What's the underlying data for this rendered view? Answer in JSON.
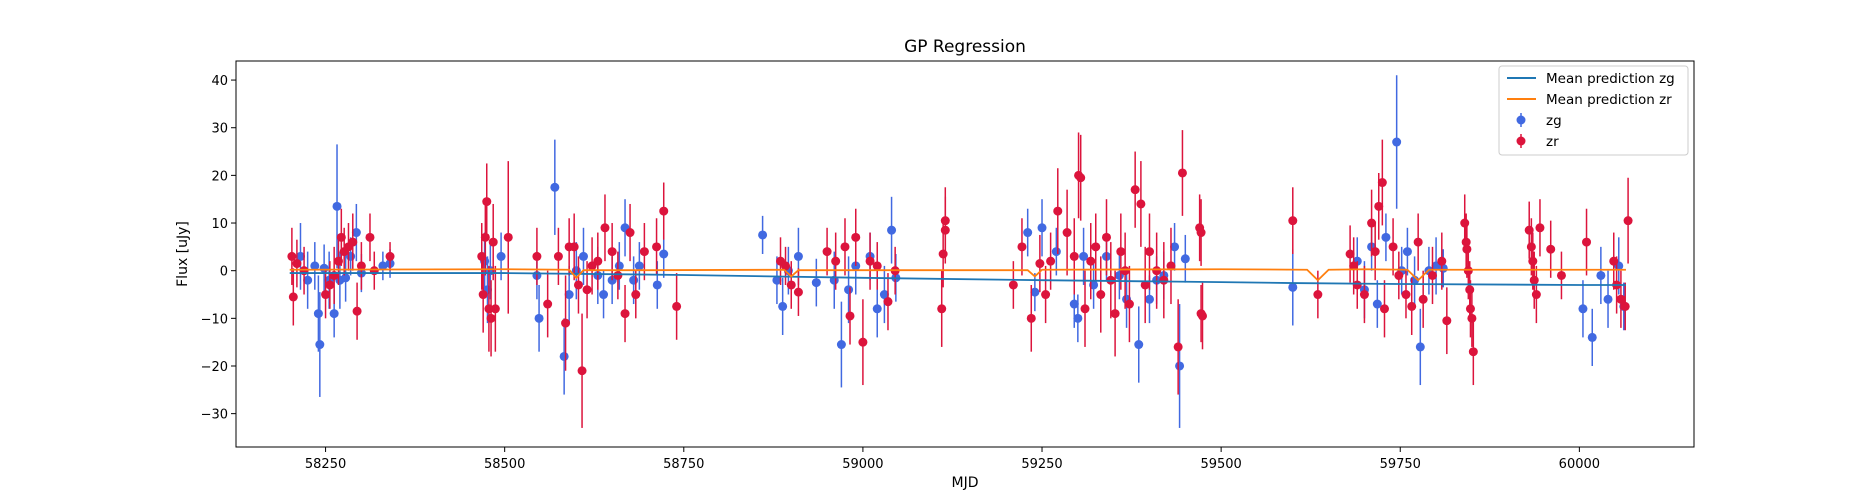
{
  "chart_data": {
    "type": "scatter",
    "title": "GP Regression",
    "xlabel": "MJD",
    "ylabel": "Flux [uJy]",
    "xlim": [
      58125,
      60160
    ],
    "ylim": [
      -37,
      44
    ],
    "xticks": [
      58250,
      58500,
      58750,
      59000,
      59250,
      59500,
      59750,
      60000
    ],
    "yticks": [
      -30,
      -20,
      -10,
      0,
      10,
      20,
      30,
      40
    ],
    "grid": false,
    "legend_position": "top-right",
    "legend": [
      {
        "label": "Mean prediction zg",
        "kind": "line",
        "color": "#1f77b4"
      },
      {
        "label": "Mean prediction zr",
        "kind": "line",
        "color": "#ff7f0e"
      },
      {
        "label": "zg",
        "kind": "errorbar",
        "color": "#4169e1"
      },
      {
        "label": "zr",
        "kind": "errorbar",
        "color": "#dc143c"
      }
    ],
    "series": [
      {
        "name": "Mean prediction zg",
        "kind": "line",
        "color": "#1f77b4",
        "x": [
          58200,
          58500,
          58750,
          59000,
          59250,
          59500,
          59600,
          59750,
          60000,
          60065
        ],
        "y": [
          -0.5,
          -0.5,
          -0.9,
          -1.5,
          -2.0,
          -2.4,
          -2.6,
          -2.8,
          -3.0,
          -3.0
        ]
      },
      {
        "name": "Mean prediction zr",
        "kind": "line",
        "color": "#ff7f0e",
        "x": [
          58200,
          58500,
          58590,
          58600,
          58610,
          58700,
          58890,
          58900,
          58910,
          59000,
          59230,
          59240,
          59250,
          59500,
          59620,
          59635,
          59650,
          59700,
          59760,
          59775,
          59790,
          60000,
          60065
        ],
        "y": [
          0.2,
          0.3,
          0.2,
          -1.5,
          0.1,
          0.1,
          0.2,
          -1.2,
          0.1,
          0.1,
          0.1,
          -1.2,
          0.2,
          0.3,
          0.2,
          -2.0,
          0.2,
          0.3,
          0.2,
          -2.0,
          0.2,
          0.2,
          0.2
        ]
      },
      {
        "name": "zg",
        "kind": "errorbar",
        "color": "#4169e1",
        "points": [
          [
            58215,
            3,
            7
          ],
          [
            58225,
            -2,
            6
          ],
          [
            58235,
            1,
            5
          ],
          [
            58240,
            -9,
            8
          ],
          [
            58242,
            -15.5,
            11
          ],
          [
            58248,
            0.5,
            5
          ],
          [
            58255,
            -2,
            6
          ],
          [
            58262,
            -9,
            5
          ],
          [
            58266,
            13.5,
            13
          ],
          [
            58270,
            -2,
            6
          ],
          [
            58278,
            -1.5,
            5
          ],
          [
            58285,
            3,
            4
          ],
          [
            58293,
            8,
            6
          ],
          [
            58300,
            -0.5,
            4
          ],
          [
            58330,
            1,
            3
          ],
          [
            58340,
            1.5,
            3
          ],
          [
            58472,
            2,
            6
          ],
          [
            58476,
            -4,
            7
          ],
          [
            58480,
            0,
            6
          ],
          [
            58495,
            3,
            5
          ],
          [
            58545,
            -1,
            5
          ],
          [
            58548,
            -10,
            7
          ],
          [
            58570,
            17.5,
            10
          ],
          [
            58583,
            -18,
            8
          ],
          [
            58590,
            -5,
            6
          ],
          [
            58600,
            0,
            6
          ],
          [
            58610,
            3,
            6
          ],
          [
            58630,
            -1,
            6
          ],
          [
            58638,
            -5,
            5
          ],
          [
            58650,
            -2,
            5
          ],
          [
            58660,
            1,
            5
          ],
          [
            58668,
            9,
            6
          ],
          [
            58680,
            -2,
            5
          ],
          [
            58688,
            1,
            5
          ],
          [
            58713,
            -3,
            5
          ],
          [
            58722,
            3.5,
            5
          ],
          [
            58860,
            7.5,
            4
          ],
          [
            58880,
            -2,
            5
          ],
          [
            58888,
            -7.5,
            6
          ],
          [
            58896,
            0,
            5
          ],
          [
            58910,
            3,
            6
          ],
          [
            58935,
            -2.5,
            5
          ],
          [
            58960,
            -2,
            6
          ],
          [
            58970,
            -15.5,
            9
          ],
          [
            58980,
            -4,
            7
          ],
          [
            58990,
            1,
            6
          ],
          [
            59010,
            3,
            5
          ],
          [
            59020,
            -8,
            6
          ],
          [
            59030,
            -5,
            6
          ],
          [
            59040,
            8.5,
            7
          ],
          [
            59046,
            -1.5,
            5
          ],
          [
            59230,
            8,
            5
          ],
          [
            59240,
            -4.5,
            4
          ],
          [
            59250,
            9,
            6
          ],
          [
            59270,
            4,
            5
          ],
          [
            59295,
            -7,
            5
          ],
          [
            59300,
            -10,
            5
          ],
          [
            59308,
            3,
            6
          ],
          [
            59322,
            -3,
            5
          ],
          [
            59340,
            3,
            5
          ],
          [
            59358,
            -1,
            5
          ],
          [
            59368,
            -6,
            6
          ],
          [
            59385,
            -15.5,
            8
          ],
          [
            59400,
            -6,
            5
          ],
          [
            59410,
            -2,
            5
          ],
          [
            59420,
            -1,
            5
          ],
          [
            59435,
            5,
            5
          ],
          [
            59442,
            -20,
            13
          ],
          [
            59450,
            2.5,
            5
          ],
          [
            59600,
            -3.5,
            8
          ],
          [
            59690,
            2,
            5
          ],
          [
            59700,
            -4,
            6
          ],
          [
            59710,
            5,
            5
          ],
          [
            59718,
            -7,
            5
          ],
          [
            59730,
            7,
            5
          ],
          [
            59745,
            27,
            14
          ],
          [
            59752,
            0,
            5
          ],
          [
            59760,
            4,
            5
          ],
          [
            59770,
            -2,
            5
          ],
          [
            59778,
            -16,
            8
          ],
          [
            59790,
            0,
            5
          ],
          [
            59800,
            1,
            6
          ],
          [
            59810,
            0.5,
            4
          ],
          [
            60005,
            -8,
            6
          ],
          [
            60018,
            -14,
            6
          ],
          [
            60030,
            -1,
            6
          ],
          [
            60040,
            -6,
            6
          ],
          [
            60055,
            1,
            6
          ],
          [
            60062,
            -7.5,
            5
          ]
        ]
      },
      {
        "name": "zr",
        "kind": "errorbar",
        "color": "#dc143c",
        "points": [
          [
            58203,
            3,
            6
          ],
          [
            58205,
            -5.5,
            6
          ],
          [
            58210,
            1.5,
            5
          ],
          [
            58220,
            0,
            5
          ],
          [
            58250,
            -5,
            5
          ],
          [
            58256,
            -3,
            5
          ],
          [
            58262,
            -1,
            6
          ],
          [
            58268,
            2,
            5
          ],
          [
            58272,
            7,
            6
          ],
          [
            58276,
            4,
            5
          ],
          [
            58282,
            5,
            5
          ],
          [
            58288,
            6,
            6
          ],
          [
            58294,
            -8.5,
            6
          ],
          [
            58300,
            1,
            5
          ],
          [
            58312,
            7,
            5
          ],
          [
            58318,
            0,
            4
          ],
          [
            58340,
            3,
            3
          ],
          [
            58468,
            3,
            7
          ],
          [
            58470,
            -5,
            8
          ],
          [
            58473,
            7,
            8
          ],
          [
            58475,
            14.5,
            8
          ],
          [
            58478,
            -8,
            9
          ],
          [
            58481,
            -10,
            8
          ],
          [
            58484,
            6,
            8
          ],
          [
            58487,
            -8,
            9
          ],
          [
            58505,
            7,
            16
          ],
          [
            58545,
            3,
            6
          ],
          [
            58560,
            -7,
            7
          ],
          [
            58575,
            3,
            6
          ],
          [
            58585,
            -11,
            10
          ],
          [
            58590,
            5,
            6
          ],
          [
            58597,
            5,
            7
          ],
          [
            58603,
            -3,
            6
          ],
          [
            58608,
            -21,
            12
          ],
          [
            58615,
            -4,
            6
          ],
          [
            58622,
            1,
            6
          ],
          [
            58630,
            2,
            6
          ],
          [
            58640,
            9,
            7
          ],
          [
            58650,
            4,
            6
          ],
          [
            58658,
            -1,
            5
          ],
          [
            58668,
            -9,
            6
          ],
          [
            58675,
            8,
            6
          ],
          [
            58683,
            -5,
            5
          ],
          [
            58695,
            4,
            6
          ],
          [
            58712,
            5,
            6
          ],
          [
            58722,
            12.5,
            6
          ],
          [
            58740,
            -7.5,
            7
          ],
          [
            58885,
            2,
            5
          ],
          [
            58892,
            1,
            4
          ],
          [
            58900,
            -3,
            5
          ],
          [
            58910,
            -4.5,
            5
          ],
          [
            58950,
            4,
            5
          ],
          [
            58962,
            2,
            6
          ],
          [
            58975,
            5,
            6
          ],
          [
            58982,
            -9.5,
            6
          ],
          [
            58990,
            7,
            6
          ],
          [
            59000,
            -15,
            9
          ],
          [
            59010,
            2,
            6
          ],
          [
            59020,
            1,
            5
          ],
          [
            59035,
            -6.5,
            6
          ],
          [
            59045,
            0,
            5
          ],
          [
            59110,
            -8,
            8
          ],
          [
            59112,
            3.5,
            7
          ],
          [
            59115,
            10.5,
            7
          ],
          [
            59115,
            8.5,
            7
          ],
          [
            59210,
            -3,
            5
          ],
          [
            59222,
            5,
            6
          ],
          [
            59235,
            -10,
            7
          ],
          [
            59247,
            1.5,
            6
          ],
          [
            59255,
            -5,
            6
          ],
          [
            59262,
            2,
            6
          ],
          [
            59272,
            12.5,
            9
          ],
          [
            59285,
            8,
            9
          ],
          [
            59295,
            3,
            8
          ],
          [
            59301,
            20,
            9
          ],
          [
            59304,
            19.5,
            9
          ],
          [
            59310,
            -8,
            8
          ],
          [
            59318,
            2,
            8
          ],
          [
            59325,
            5,
            7
          ],
          [
            59332,
            -5,
            8
          ],
          [
            59340,
            7,
            8
          ],
          [
            59346,
            -2,
            8
          ],
          [
            59352,
            -9,
            9
          ],
          [
            59360,
            4,
            8
          ],
          [
            59366,
            0,
            8
          ],
          [
            59372,
            -7,
            8
          ],
          [
            59380,
            17,
            8
          ],
          [
            59388,
            14,
            9
          ],
          [
            59394,
            -3,
            8
          ],
          [
            59400,
            4,
            8
          ],
          [
            59410,
            0,
            8
          ],
          [
            59420,
            -2,
            8
          ],
          [
            59430,
            1,
            8
          ],
          [
            59440,
            -16,
            10
          ],
          [
            59446,
            20.5,
            9
          ],
          [
            59470,
            9,
            7
          ],
          [
            59472,
            8,
            7
          ],
          [
            59472,
            -9,
            6
          ],
          [
            59474,
            -9.5,
            7
          ],
          [
            59600,
            10.5,
            7
          ],
          [
            59635,
            -5,
            5
          ],
          [
            59680,
            3.5,
            6
          ],
          [
            59685,
            1,
            6
          ],
          [
            59690,
            -3,
            5
          ],
          [
            59700,
            -5,
            6
          ],
          [
            59710,
            10,
            7
          ],
          [
            59715,
            4,
            6
          ],
          [
            59720,
            13.5,
            7
          ],
          [
            59725,
            18.5,
            9
          ],
          [
            59728,
            -8,
            6
          ],
          [
            59740,
            5,
            6
          ],
          [
            59748,
            -1,
            5
          ],
          [
            59758,
            -5,
            5
          ],
          [
            59766,
            -7.5,
            6
          ],
          [
            59775,
            6,
            6
          ],
          [
            59782,
            -6,
            6
          ],
          [
            59795,
            -1,
            6
          ],
          [
            59808,
            2,
            6
          ],
          [
            59815,
            -10.5,
            7
          ],
          [
            59840,
            10,
            6
          ],
          [
            59842,
            6,
            6
          ],
          [
            59843,
            4.5,
            6
          ],
          [
            59845,
            0,
            6
          ],
          [
            59847,
            -4,
            6
          ],
          [
            59848,
            -8,
            6
          ],
          [
            59850,
            -10,
            6
          ],
          [
            59852,
            -17,
            7
          ],
          [
            59930,
            8.5,
            6
          ],
          [
            59933,
            5,
            6
          ],
          [
            59935,
            2,
            6
          ],
          [
            59937,
            -2,
            6
          ],
          [
            59940,
            -5,
            6
          ],
          [
            59945,
            9,
            6
          ],
          [
            59960,
            4.5,
            6
          ],
          [
            59975,
            -1,
            5
          ],
          [
            60010,
            6,
            7
          ],
          [
            60048,
            2,
            6
          ],
          [
            60052,
            -3,
            6
          ],
          [
            60058,
            -6,
            6
          ],
          [
            60064,
            -7.5,
            5
          ],
          [
            60068,
            10.5,
            9
          ]
        ]
      }
    ]
  }
}
